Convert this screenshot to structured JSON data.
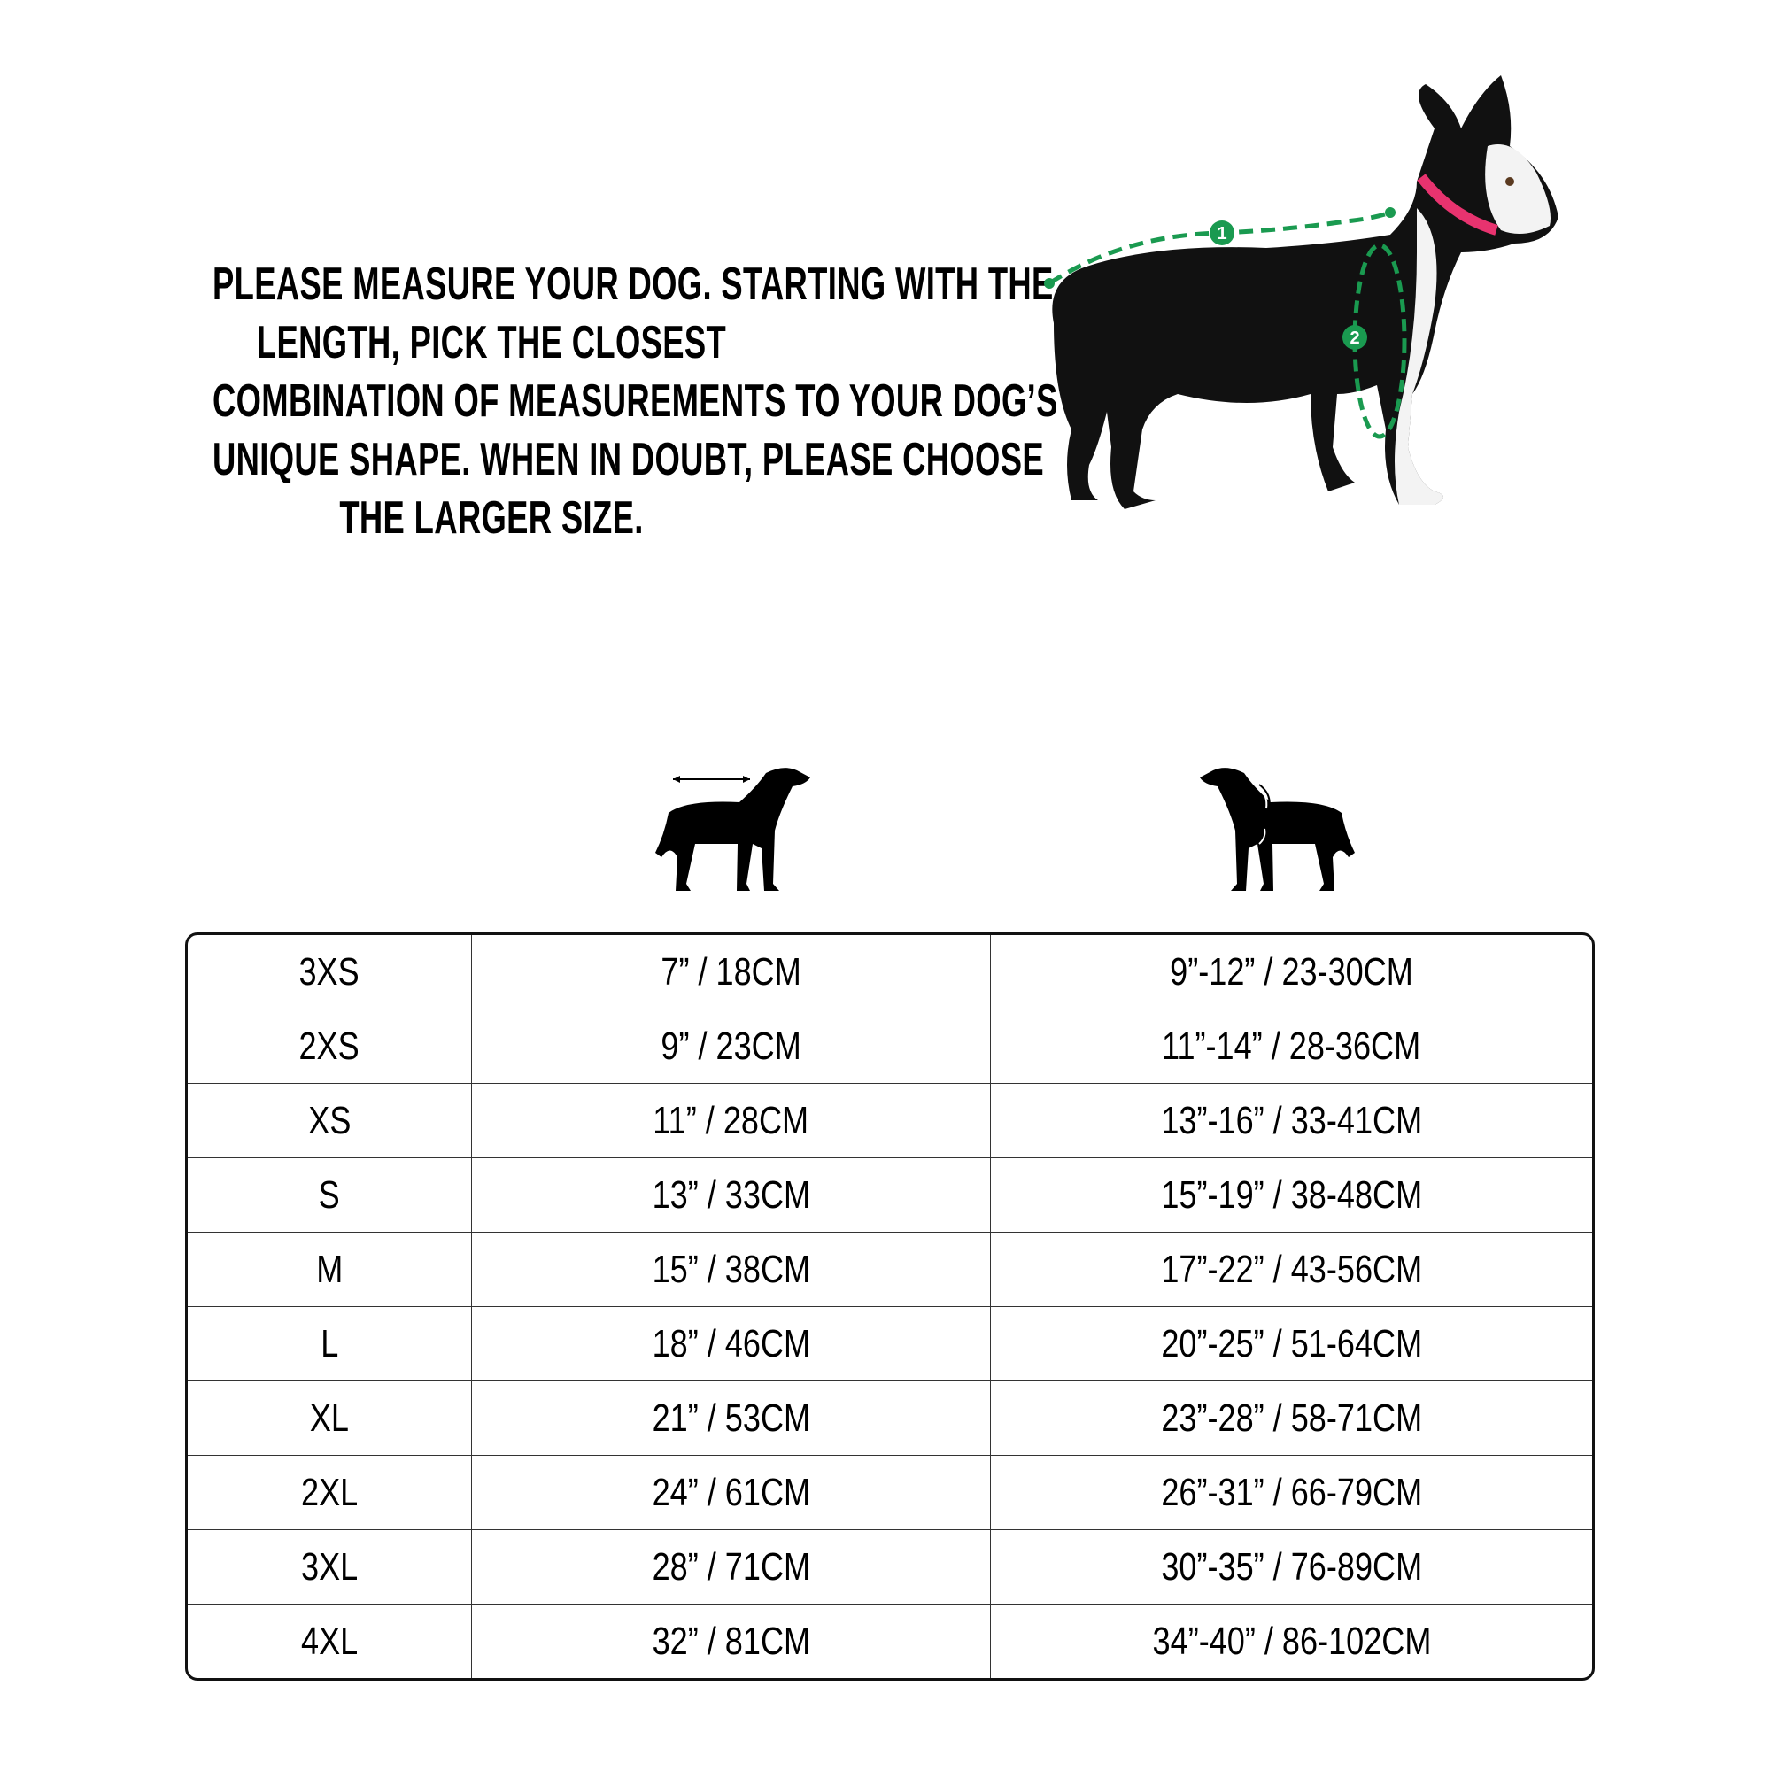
{
  "instructions": {
    "lines": [
      "PLEASE MEASURE YOUR DOG. STARTING WITH THE",
      "LENGTH, PICK THE CLOSEST",
      "COMBINATION OF MEASUREMENTS TO YOUR DOG’S",
      "UNIQUE SHAPE. WHEN IN DOUBT, PLEASE CHOOSE",
      "THE LARGER SIZE."
    ]
  },
  "photo": {
    "markers": [
      "1",
      "2"
    ],
    "measure_color": "#1a9a50",
    "collar_color": "#e8336f"
  },
  "icons": {
    "length": "dog-length-icon",
    "chest": "dog-chest-icon"
  },
  "table": {
    "rows": [
      [
        "3XS",
        "7” / 18CM",
        "9”-12” / 23-30CM"
      ],
      [
        "2XS",
        "9” / 23CM",
        "11”-14” / 28-36CM"
      ],
      [
        "XS",
        "11” / 28CM",
        "13”-16” / 33-41CM"
      ],
      [
        "S",
        "13” / 33CM",
        "15”-19” / 38-48CM"
      ],
      [
        "M",
        "15” / 38CM",
        "17”-22” / 43-56CM"
      ],
      [
        "L",
        "18” / 46CM",
        "20”-25” / 51-64CM"
      ],
      [
        "XL",
        "21” / 53CM",
        "23”-28” / 58-71CM"
      ],
      [
        "2XL",
        "24” / 61CM",
        "26”-31” / 66-79CM"
      ],
      [
        "3XL",
        "28” / 71CM",
        "30”-35” / 76-89CM"
      ],
      [
        "4XL",
        "32” / 81CM",
        "34”-40” / 86-102CM"
      ]
    ]
  }
}
